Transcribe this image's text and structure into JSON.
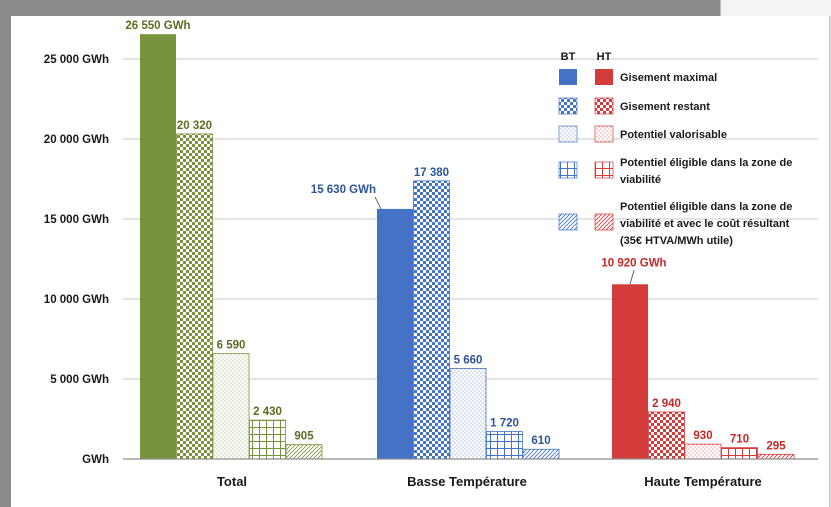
{
  "chart_data": {
    "type": "bar",
    "categories": [
      "Total",
      "Basse Température",
      "Haute Température"
    ],
    "y_unit": "GWh",
    "ylim": [
      0,
      27000
    ],
    "y_ticks": [
      {
        "value": 0,
        "label": "GWh"
      },
      {
        "value": 5000,
        "label": "5 000 GWh"
      },
      {
        "value": 10000,
        "label": "10 000 GWh"
      },
      {
        "value": 15000,
        "label": "15 000 GWh"
      },
      {
        "value": 20000,
        "label": "20 000 GWh"
      },
      {
        "value": 25000,
        "label": "25 000 GWh"
      }
    ],
    "grid": true,
    "legend_position": "top-right",
    "legend_headers": {
      "bt": "BT",
      "ht": "HT"
    },
    "legend": [
      {
        "label": "Gisement maximal",
        "pattern": "solid"
      },
      {
        "label": "Gisement restant",
        "pattern": "checker"
      },
      {
        "label": "Potentiel valorisable",
        "pattern": "dots"
      },
      {
        "label": "Potentiel éligible  dans la zone de viabilité",
        "pattern": "grid"
      },
      {
        "label": "Potentiel éligible  dans la zone de viabilité et avec le coût résultant (35€ HTVA/MWh utile)",
        "pattern": "diag"
      }
    ],
    "groups": [
      {
        "category": "Total",
        "color": "#77933c",
        "bars": [
          {
            "value": 26550,
            "label": "26 550 GWh",
            "pattern": "solid"
          },
          {
            "value": 20320,
            "label": "20 320",
            "pattern": "checker"
          },
          {
            "value": 6590,
            "label": "6 590",
            "pattern": "dots"
          },
          {
            "value": 2430,
            "label": "2 430",
            "pattern": "grid"
          },
          {
            "value": 905,
            "label": "905",
            "pattern": "diag"
          }
        ]
      },
      {
        "category": "Basse Température",
        "color": "#4472c4",
        "bars": [
          {
            "value": 15630,
            "label": "15 630 GWh",
            "pattern": "solid"
          },
          {
            "value": 17380,
            "label": "17 380",
            "pattern": "checker"
          },
          {
            "value": 5660,
            "label": "5 660",
            "pattern": "dots"
          },
          {
            "value": 1720,
            "label": "1 720",
            "pattern": "grid"
          },
          {
            "value": 610,
            "label": "610",
            "pattern": "diag"
          }
        ]
      },
      {
        "category": "Haute Température",
        "color": "#d43c3c",
        "bars": [
          {
            "value": 10920,
            "label": "10 920 GWh",
            "pattern": "solid"
          },
          {
            "value": 2940,
            "label": "2 940",
            "pattern": "checker"
          },
          {
            "value": 930,
            "label": "930",
            "pattern": "dots"
          },
          {
            "value": 710,
            "label": "710",
            "pattern": "grid"
          },
          {
            "value": 295,
            "label": "295",
            "pattern": "diag"
          }
        ]
      }
    ],
    "colors": {
      "total": "#77933c",
      "bt": "#4472c4",
      "ht": "#d43c3c",
      "grid": "#c8c8c8",
      "axis": "#8c8c8c",
      "total_label": "#5a6e22",
      "bt_label": "#2e5597",
      "ht_label": "#c62828"
    }
  }
}
